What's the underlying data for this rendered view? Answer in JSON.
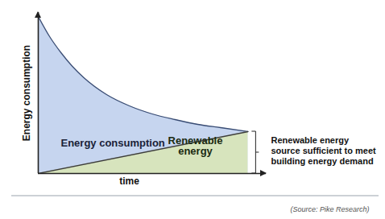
{
  "chart_data": {
    "type": "area",
    "x_label": "time",
    "y_label": "Energy consumption",
    "xlim": [
      0,
      100
    ],
    "ylim": [
      0,
      100
    ],
    "xticks": [],
    "yticks": [],
    "tick_labels": false,
    "grid": false,
    "series": [
      {
        "name": "Energy consumption",
        "color": "#c6d5ef",
        "x": [
          0,
          5,
          10,
          15,
          20,
          30,
          40,
          50,
          60,
          70,
          80,
          92
        ],
        "values": [
          97.5,
          85,
          75,
          66.5,
          59.5,
          49,
          42,
          37,
          33.5,
          30.5,
          28.5,
          26
        ]
      },
      {
        "name": "Renewable energy",
        "color": "#d7e4bd",
        "x": [
          0,
          92
        ],
        "values": [
          0,
          26
        ]
      }
    ],
    "annotation": "Renewable energy\nsource sufficient to meet\nbuilding energy demand",
    "source": "(Source: Pike Research)"
  }
}
